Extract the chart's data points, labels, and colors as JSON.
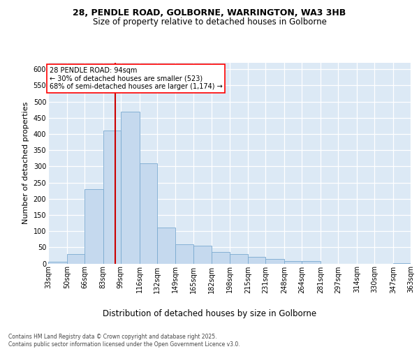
{
  "title_line1": "28, PENDLE ROAD, GOLBORNE, WARRINGTON, WA3 3HB",
  "title_line2": "Size of property relative to detached houses in Golborne",
  "xlabel": "Distribution of detached houses by size in Golborne",
  "ylabel": "Number of detached properties",
  "bar_color": "#c5d9ee",
  "bar_edge_color": "#7aaad0",
  "background_color": "#dce9f5",
  "annotation_text": "28 PENDLE ROAD: 94sqm\n← 30% of detached houses are smaller (523)\n68% of semi-detached houses are larger (1,174) →",
  "vline_x": 94,
  "vline_color": "#cc0000",
  "footnote": "Contains HM Land Registry data © Crown copyright and database right 2025.\nContains public sector information licensed under the Open Government Licence v3.0.",
  "bins": [
    33,
    50,
    66,
    83,
    99,
    116,
    132,
    149,
    165,
    182,
    198,
    215,
    231,
    248,
    264,
    281,
    297,
    314,
    330,
    347,
    363
  ],
  "counts": [
    5,
    30,
    230,
    410,
    470,
    310,
    110,
    60,
    55,
    35,
    30,
    20,
    15,
    8,
    8,
    0,
    0,
    0,
    0,
    2,
    0
  ],
  "ylim_max": 620,
  "yticks": [
    0,
    50,
    100,
    150,
    200,
    250,
    300,
    350,
    400,
    450,
    500,
    550,
    600
  ],
  "title_fontsize": 9,
  "subtitle_fontsize": 8.5,
  "ylabel_fontsize": 8,
  "xlabel_fontsize": 8.5,
  "tick_fontsize": 7,
  "footnote_fontsize": 5.5
}
